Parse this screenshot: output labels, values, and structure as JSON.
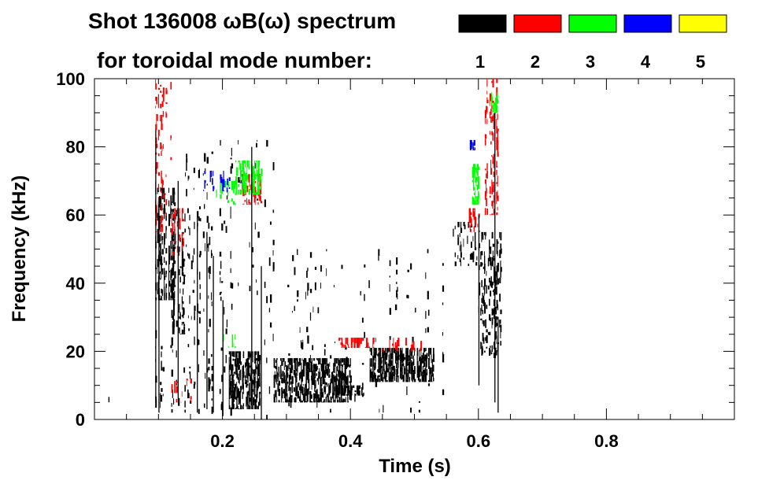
{
  "chart_data": {
    "type": "heatmap",
    "title_line1": "Shot 136008 ωB(ω) spectrum",
    "title_line2": "for toroidal mode number:",
    "xlabel": "Time (s)",
    "ylabel": "Frequency (kHz)",
    "xlim": [
      0.0,
      1.0
    ],
    "ylim": [
      0,
      100
    ],
    "x_ticks": [
      0.2,
      0.4,
      0.6,
      0.8
    ],
    "x_tick_labels": [
      "0.2",
      "0.4",
      "0.6",
      "0.8"
    ],
    "y_ticks": [
      0,
      20,
      40,
      60,
      80,
      100
    ],
    "y_tick_labels": [
      "0",
      "20",
      "40",
      "60",
      "80",
      "100"
    ],
    "legend": [
      {
        "label": "1",
        "color": "#000000"
      },
      {
        "label": "2",
        "color": "#ff0000"
      },
      {
        "label": "3",
        "color": "#00ff00"
      },
      {
        "label": "4",
        "color": "#0000ff"
      },
      {
        "label": "5",
        "color": "#ffff00"
      }
    ],
    "regions": [
      {
        "mode": 1,
        "t": [
          0.095,
          0.125
        ],
        "f": [
          35,
          68
        ],
        "density": 0.55
      },
      {
        "mode": 1,
        "t": [
          0.095,
          0.2
        ],
        "f": [
          2,
          62
        ],
        "density": 0.1
      },
      {
        "mode": 1,
        "t": [
          0.12,
          0.14
        ],
        "f": [
          25,
          55
        ],
        "density": 0.35
      },
      {
        "mode": 1,
        "t": [
          0.14,
          0.28
        ],
        "f": [
          0,
          82
        ],
        "density": 0.06
      },
      {
        "mode": 1,
        "t": [
          0.21,
          0.26
        ],
        "f": [
          3,
          20
        ],
        "density": 0.6
      },
      {
        "mode": 1,
        "t": [
          0.28,
          0.4
        ],
        "f": [
          5,
          18
        ],
        "density": 0.6
      },
      {
        "mode": 1,
        "t": [
          0.38,
          0.42
        ],
        "f": [
          7,
          10
        ],
        "density": 0.55
      },
      {
        "mode": 1,
        "t": [
          0.43,
          0.53
        ],
        "f": [
          11,
          21
        ],
        "density": 0.65
      },
      {
        "mode": 1,
        "t": [
          0.3,
          0.55
        ],
        "f": [
          2,
          50
        ],
        "density": 0.05
      },
      {
        "mode": 1,
        "t": [
          0.56,
          0.6
        ],
        "f": [
          45,
          58
        ],
        "density": 0.3
      },
      {
        "mode": 1,
        "t": [
          0.6,
          0.635
        ],
        "f": [
          18,
          55
        ],
        "density": 0.3
      },
      {
        "mode": 1,
        "t": [
          0.01,
          0.03
        ],
        "f": [
          5,
          8
        ],
        "density": 0.1
      },
      {
        "mode": 2,
        "t": [
          0.095,
          0.12
        ],
        "f": [
          55,
          100
        ],
        "density": 0.25
      },
      {
        "mode": 2,
        "t": [
          0.12,
          0.14
        ],
        "f": [
          48,
          62
        ],
        "density": 0.35
      },
      {
        "mode": 2,
        "t": [
          0.12,
          0.15
        ],
        "f": [
          5,
          12
        ],
        "density": 0.15
      },
      {
        "mode": 2,
        "t": [
          0.23,
          0.26
        ],
        "f": [
          63,
          72
        ],
        "density": 0.5
      },
      {
        "mode": 2,
        "t": [
          0.38,
          0.44
        ],
        "f": [
          21,
          24
        ],
        "density": 0.55
      },
      {
        "mode": 2,
        "t": [
          0.44,
          0.52
        ],
        "f": [
          20,
          24
        ],
        "density": 0.3
      },
      {
        "mode": 2,
        "t": [
          0.585,
          0.6
        ],
        "f": [
          55,
          62
        ],
        "density": 0.5
      },
      {
        "mode": 2,
        "t": [
          0.61,
          0.63
        ],
        "f": [
          60,
          100
        ],
        "density": 0.3
      },
      {
        "mode": 3,
        "t": [
          0.19,
          0.22
        ],
        "f": [
          63,
          70
        ],
        "density": 0.25
      },
      {
        "mode": 3,
        "t": [
          0.22,
          0.26
        ],
        "f": [
          66,
          76
        ],
        "density": 0.5
      },
      {
        "mode": 3,
        "t": [
          0.2,
          0.22
        ],
        "f": [
          21,
          25
        ],
        "density": 0.35
      },
      {
        "mode": 3,
        "t": [
          0.59,
          0.6
        ],
        "f": [
          63,
          75
        ],
        "density": 0.6
      },
      {
        "mode": 3,
        "t": [
          0.62,
          0.63
        ],
        "f": [
          90,
          96
        ],
        "density": 0.5
      },
      {
        "mode": 4,
        "t": [
          0.17,
          0.21
        ],
        "f": [
          67,
          73
        ],
        "density": 0.3
      },
      {
        "mode": 4,
        "t": [
          0.585,
          0.595
        ],
        "f": [
          79,
          82
        ],
        "density": 0.6
      }
    ]
  }
}
